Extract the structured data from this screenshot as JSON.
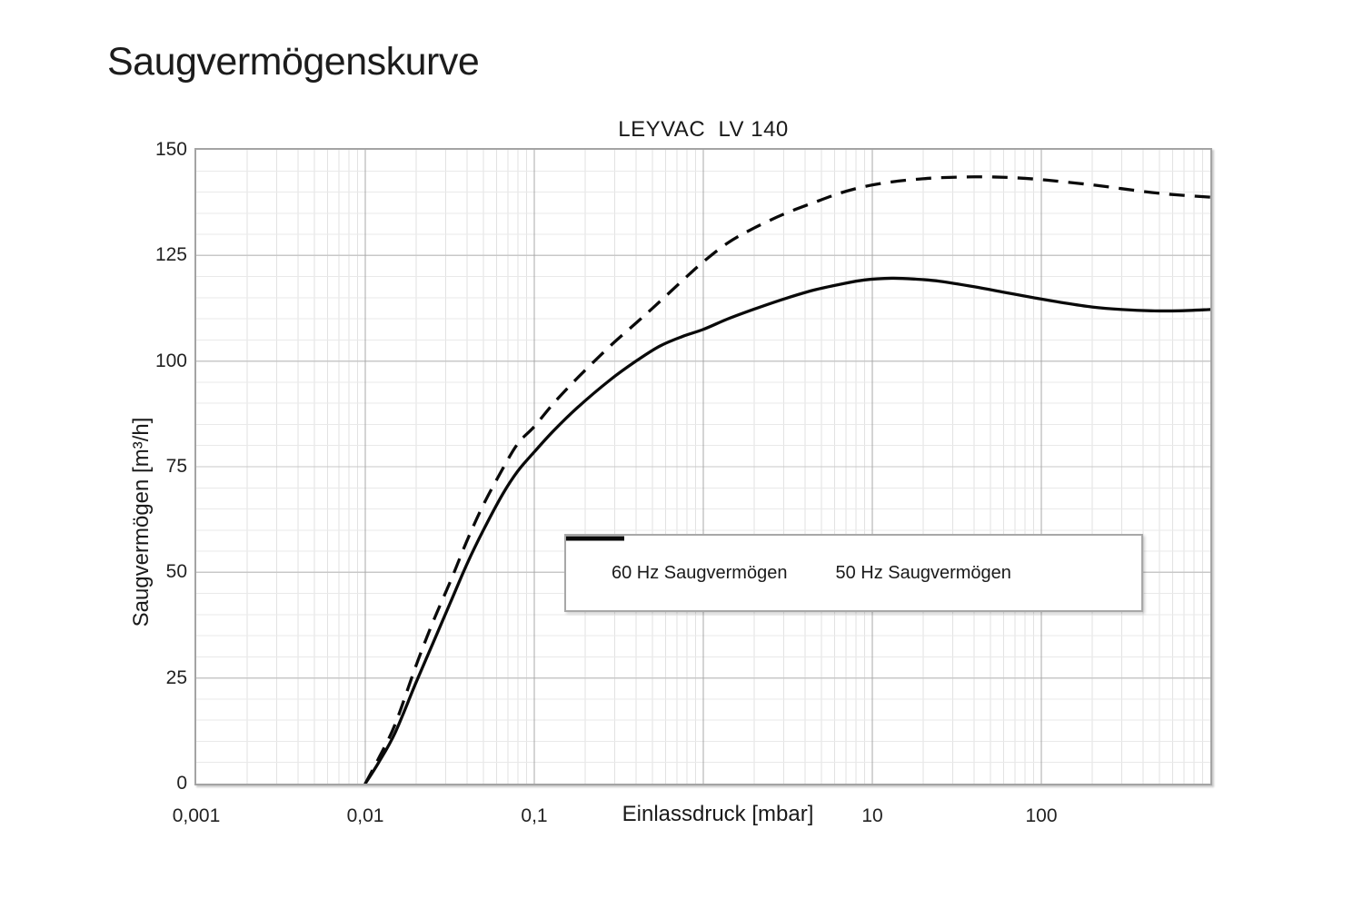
{
  "page": {
    "title": "Saugvermögenskurve"
  },
  "chart": {
    "subtitle": "LEYVAC  LV 140",
    "x_axis": {
      "title": "Einlassdruck [mbar]",
      "scale": "log",
      "ticks": [
        {
          "value": 0.001,
          "label": "0,001"
        },
        {
          "value": 0.01,
          "label": "0,01"
        },
        {
          "value": 0.1,
          "label": "0,1"
        },
        {
          "value": 10,
          "label": "10"
        },
        {
          "value": 100,
          "label": "100"
        }
      ]
    },
    "y_axis": {
      "title": "Saugvermögen [m³/h]",
      "ticks": [
        {
          "value": 0,
          "label": "0"
        },
        {
          "value": 25,
          "label": "25"
        },
        {
          "value": 50,
          "label": "50"
        },
        {
          "value": 75,
          "label": "75"
        },
        {
          "value": 100,
          "label": "100"
        },
        {
          "value": 125,
          "label": "125"
        },
        {
          "value": 150,
          "label": "150"
        }
      ]
    },
    "legend": [
      {
        "label": "60 Hz Saugvermögen",
        "style": "dashed"
      },
      {
        "label": "50 Hz Saugvermögen",
        "style": "solid"
      }
    ]
  },
  "colors": {
    "curve": "#0a0a0a",
    "grid_minor_h": "#e9e9e9",
    "grid_minor_v": "#e2e2e2",
    "grid_major_h": "#c8c8c8",
    "grid_decade_v": "#a8a8a8",
    "plot_border": "#a4a4a4",
    "text": "#1a1a1a"
  },
  "chart_data": {
    "type": "line",
    "title": "LEYVAC LV 140",
    "xlabel": "Einlassdruck [mbar]",
    "ylabel": "Saugvermögen [m³/h]",
    "x_scale": "log",
    "xlim": [
      0.001,
      1000
    ],
    "ylim": [
      0,
      150
    ],
    "y_major_step": 25,
    "y_minor_step": 5,
    "grid": true,
    "legend_position": "center",
    "series": [
      {
        "name": "60 Hz Saugvermögen",
        "style": "dashed",
        "points": [
          [
            0.01,
            0
          ],
          [
            0.012,
            6
          ],
          [
            0.015,
            14
          ],
          [
            0.02,
            28
          ],
          [
            0.025,
            38
          ],
          [
            0.032,
            48
          ],
          [
            0.04,
            57.5
          ],
          [
            0.05,
            66
          ],
          [
            0.065,
            74.5
          ],
          [
            0.08,
            80.5
          ],
          [
            0.1,
            84.5
          ],
          [
            0.13,
            90
          ],
          [
            0.18,
            96
          ],
          [
            0.28,
            103.5
          ],
          [
            0.4,
            109
          ],
          [
            0.55,
            114
          ],
          [
            0.75,
            119
          ],
          [
            1,
            123.5
          ],
          [
            1.4,
            128
          ],
          [
            2,
            131.5
          ],
          [
            3,
            134.8
          ],
          [
            4.5,
            137.5
          ],
          [
            6.5,
            139.8
          ],
          [
            9,
            141.3
          ],
          [
            13,
            142.4
          ],
          [
            18,
            143
          ],
          [
            25,
            143.4
          ],
          [
            40,
            143.6
          ],
          [
            60,
            143.5
          ],
          [
            90,
            143.1
          ],
          [
            130,
            142.5
          ],
          [
            200,
            141.7
          ],
          [
            300,
            140.8
          ],
          [
            450,
            139.9
          ],
          [
            650,
            139.3
          ],
          [
            1000,
            138.8
          ]
        ]
      },
      {
        "name": "50 Hz Saugvermögen",
        "style": "solid",
        "points": [
          [
            0.01,
            0
          ],
          [
            0.012,
            5
          ],
          [
            0.015,
            12
          ],
          [
            0.02,
            24
          ],
          [
            0.025,
            33
          ],
          [
            0.032,
            43
          ],
          [
            0.04,
            52
          ],
          [
            0.05,
            60
          ],
          [
            0.065,
            68.5
          ],
          [
            0.08,
            74
          ],
          [
            0.1,
            78.5
          ],
          [
            0.13,
            83.5
          ],
          [
            0.18,
            89
          ],
          [
            0.28,
            95.5
          ],
          [
            0.4,
            100
          ],
          [
            0.55,
            103.5
          ],
          [
            0.75,
            105.8
          ],
          [
            1,
            107.5
          ],
          [
            1.4,
            110
          ],
          [
            2,
            112.3
          ],
          [
            3,
            114.7
          ],
          [
            4.5,
            116.8
          ],
          [
            6.5,
            118.2
          ],
          [
            9,
            119.2
          ],
          [
            13,
            119.6
          ],
          [
            18,
            119.4
          ],
          [
            25,
            118.9
          ],
          [
            40,
            117.6
          ],
          [
            60,
            116.3
          ],
          [
            90,
            115
          ],
          [
            130,
            113.9
          ],
          [
            200,
            112.8
          ],
          [
            300,
            112.2
          ],
          [
            450,
            111.9
          ],
          [
            650,
            111.9
          ],
          [
            1000,
            112.2
          ]
        ]
      }
    ]
  }
}
